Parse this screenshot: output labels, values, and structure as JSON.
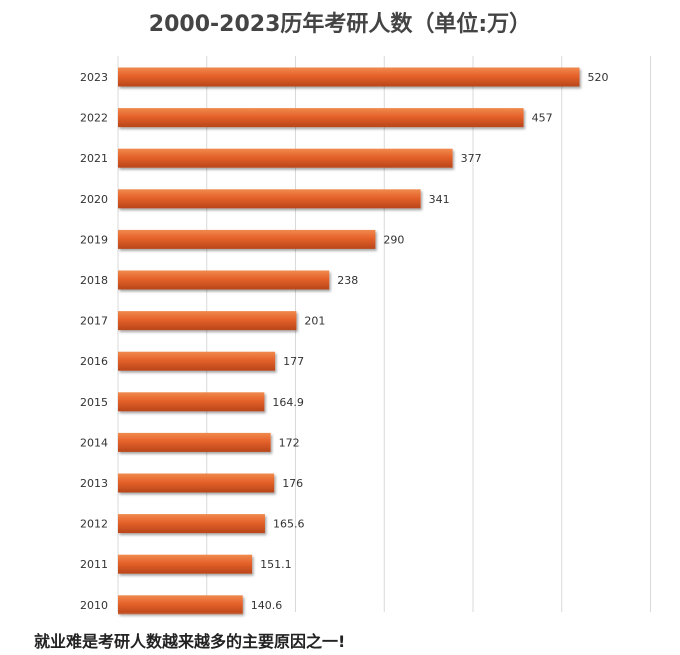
{
  "chart_data": {
    "type": "bar",
    "orientation": "horizontal",
    "title": "2000-2023历年考研人数（单位:万）",
    "xlabel": "",
    "ylabel": "",
    "categories": [
      "2023",
      "2022",
      "2021",
      "2020",
      "2019",
      "2018",
      "2017",
      "2016",
      "2015",
      "2014",
      "2013",
      "2012",
      "2011",
      "2010"
    ],
    "value_labels": [
      "520",
      "457",
      "377",
      "341",
      "290",
      "238",
      "201",
      "177",
      "164.9",
      "172",
      "176",
      "165.6",
      "151.1",
      "140.6"
    ],
    "values": [
      520,
      457,
      377,
      341,
      290,
      238,
      201,
      177,
      164.9,
      172,
      176,
      165.6,
      151.1,
      140.6
    ],
    "xlim": [
      0,
      600
    ],
    "grid": true,
    "bar_color": "#E5612A"
  },
  "caption": "就业难是考研人数越来越多的主要原因之一!"
}
